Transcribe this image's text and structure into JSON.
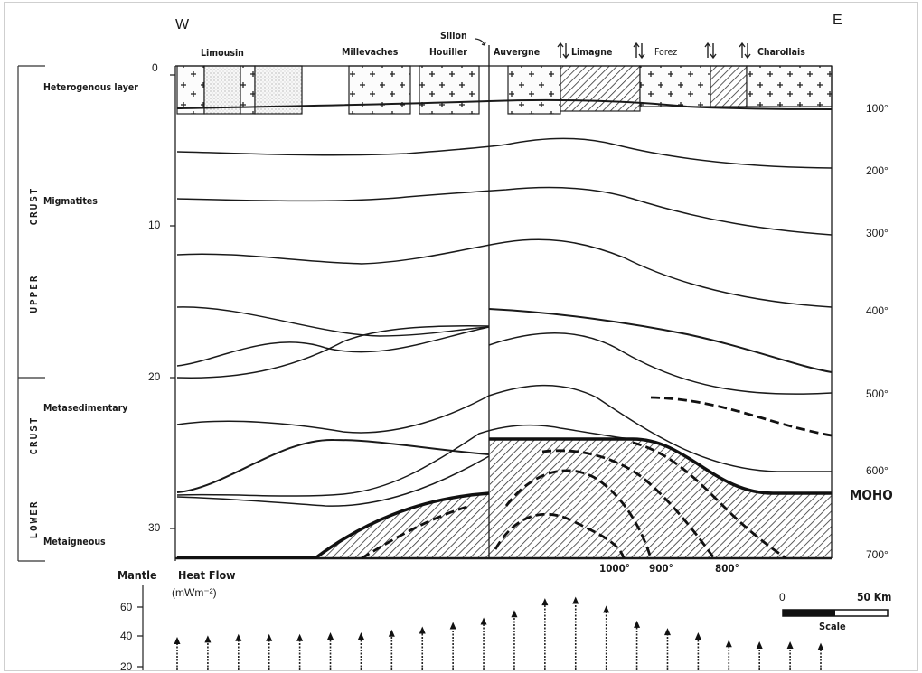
{
  "directions": {
    "west": "W",
    "east": "E"
  },
  "regions": {
    "limousin": "Limousin",
    "millevaches": "Millevaches",
    "sillon_top": "Sillon",
    "sillon_bottom": "Houiller",
    "auvergne": "Auvergne",
    "limagne": "Limagne",
    "forez": "Forez",
    "charollais": "Charollais"
  },
  "crust_labels": {
    "upper_1": "CRUST",
    "upper_2": "UPPER",
    "lower_1": "CRUST",
    "lower_2": "LOWER"
  },
  "layer_labels": {
    "heterogenous": "Heterogenous layer",
    "migmatites": "Migmatites",
    "metasedimentary": "Metasedimentary",
    "metaigneous": "Metaigneous"
  },
  "depth_ticks": [
    "0",
    "10",
    "20",
    "30"
  ],
  "temperature_ticks": [
    "100°",
    "200°",
    "300°",
    "400°",
    "500°",
    "600°",
    "700°"
  ],
  "moho_label": "MOHO",
  "bottom_temperatures": [
    "1000°",
    "900°",
    "800°"
  ],
  "heat_flow": {
    "title_1": "Mantle",
    "title_2": "Heat Flow",
    "unit": "(mWm⁻²)",
    "ticks": [
      "60",
      "40",
      "20"
    ],
    "values": [
      40,
      41,
      42,
      42,
      42,
      43,
      43,
      45,
      47,
      50,
      53,
      58,
      66,
      67,
      61,
      51,
      46,
      43,
      38,
      37,
      37,
      36
    ]
  },
  "scale": {
    "start": "0",
    "end": "50 Km",
    "label": "Scale"
  }
}
